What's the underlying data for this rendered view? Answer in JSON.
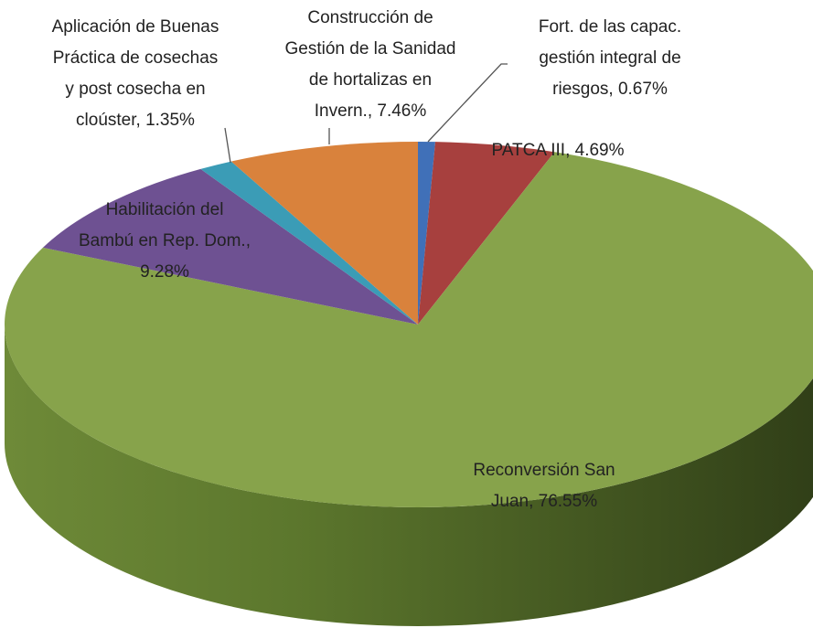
{
  "chart_data": {
    "type": "pie",
    "values": [
      0.67,
      4.69,
      76.55,
      9.28,
      1.35,
      7.46
    ],
    "value_labels": [
      [
        "Fort. de las capac.",
        "gestión integral de",
        "riesgos, 0.67%"
      ],
      [
        "PATCA III, 4.69%"
      ],
      [
        "Reconversión San",
        "Juan, 76.55%"
      ],
      [
        "Habilitación del",
        "Bambú en Rep. Dom.,",
        "9.28%"
      ],
      [
        "Aplicación de Buenas",
        "Práctica de cosechas",
        "y post cosecha en",
        "cloúster, 1.35%"
      ],
      [
        "Construcción de",
        "Gestión de la Sanidad",
        "de hortalizas en",
        "Invern., 7.46%"
      ]
    ],
    "colors": [
      "#4070b8",
      "#a7403e",
      "#87a34b",
      "#6e5192",
      "#3b9cb6",
      "#d9823c"
    ]
  }
}
